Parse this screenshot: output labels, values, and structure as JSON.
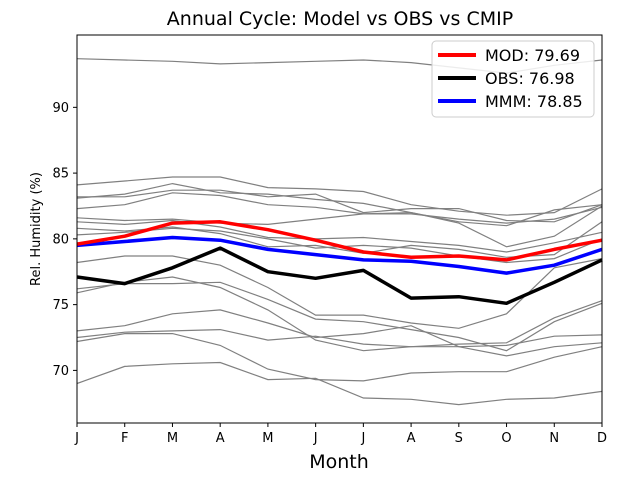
{
  "chart_data": {
    "type": "line",
    "title": "Annual Cycle: Model vs OBS vs CMIP",
    "xlabel": "Month",
    "ylabel": "Rel. Humidity (%)",
    "categories": [
      "J",
      "F",
      "M",
      "A",
      "M",
      "J",
      "J",
      "A",
      "S",
      "O",
      "N",
      "D"
    ],
    "ylim": [
      66.0,
      95.5
    ],
    "yticks": [
      70,
      75,
      80,
      85,
      90
    ],
    "grid": false,
    "legend_position": "top-right",
    "series": [
      {
        "name": "MOD: 79.69",
        "color": "#ff0000",
        "values": [
          79.6,
          80.2,
          81.2,
          81.3,
          80.7,
          79.9,
          79.0,
          78.6,
          78.7,
          78.4,
          79.2,
          79.9
        ]
      },
      {
        "name": "OBS: 76.98",
        "color": "#000000",
        "values": [
          77.1,
          76.6,
          77.8,
          79.3,
          77.5,
          77.0,
          77.6,
          75.5,
          75.6,
          75.1,
          76.7,
          78.4
        ]
      },
      {
        "name": "MMM: 78.85",
        "color": "#0000ff",
        "values": [
          79.5,
          79.8,
          80.1,
          79.9,
          79.2,
          78.8,
          78.4,
          78.3,
          77.9,
          77.4,
          78.0,
          79.2
        ]
      }
    ],
    "cmip_color": "#808080",
    "cmip_series": [
      [
        93.7,
        93.6,
        93.5,
        93.3,
        93.4,
        93.5,
        93.6,
        93.4,
        93.0,
        92.6,
        93.2,
        93.6
      ],
      [
        84.1,
        84.4,
        84.7,
        84.7,
        83.9,
        83.8,
        83.6,
        82.6,
        82.1,
        81.8,
        82.0,
        83.8
      ],
      [
        83.1,
        83.4,
        84.2,
        83.5,
        83.4,
        83.0,
        82.7,
        82.0,
        81.3,
        81.0,
        82.2,
        82.6
      ],
      [
        83.2,
        83.2,
        83.7,
        83.7,
        83.2,
        83.4,
        82.0,
        82.3,
        82.3,
        81.4,
        81.3,
        82.6
      ],
      [
        82.3,
        82.6,
        83.5,
        83.3,
        82.6,
        82.4,
        81.9,
        81.9,
        81.5,
        81.2,
        81.5,
        82.4
      ],
      [
        81.6,
        81.4,
        81.5,
        81.2,
        81.1,
        81.5,
        81.9,
        82.0,
        81.2,
        79.4,
        80.2,
        82.5
      ],
      [
        81.3,
        81.1,
        81.4,
        80.9,
        80.1,
        80.0,
        80.1,
        79.8,
        79.5,
        79.0,
        79.7,
        80.5
      ],
      [
        80.8,
        80.6,
        80.9,
        80.4,
        79.4,
        79.5,
        78.9,
        79.5,
        79.2,
        78.6,
        78.8,
        81.3
      ],
      [
        80.3,
        80.5,
        80.8,
        80.6,
        80.0,
        79.3,
        79.5,
        79.3,
        78.7,
        78.2,
        78.5,
        80.0
      ],
      [
        78.2,
        78.7,
        78.7,
        78.0,
        76.3,
        74.2,
        74.2,
        73.6,
        73.2,
        74.3,
        77.8,
        78.5
      ],
      [
        76.2,
        76.6,
        76.6,
        76.7,
        75.4,
        73.9,
        73.7,
        73.1,
        72.5,
        71.5,
        73.7,
        75.1
      ],
      [
        75.9,
        76.7,
        77.1,
        76.3,
        74.6,
        72.3,
        71.5,
        71.8,
        72.0,
        72.1,
        74.0,
        75.3
      ],
      [
        73.0,
        73.4,
        74.3,
        74.6,
        73.6,
        72.5,
        72.8,
        73.4,
        71.8,
        71.1,
        71.8,
        72.1
      ],
      [
        72.5,
        72.9,
        73.0,
        73.1,
        72.3,
        72.6,
        72.0,
        71.8,
        71.8,
        71.9,
        72.6,
        72.7
      ],
      [
        72.2,
        72.8,
        72.8,
        71.9,
        70.1,
        69.3,
        69.2,
        69.8,
        69.9,
        69.9,
        71.0,
        71.8
      ],
      [
        69.0,
        70.3,
        70.5,
        70.6,
        69.3,
        69.4,
        67.9,
        67.8,
        67.4,
        67.8,
        67.9,
        68.4
      ]
    ]
  }
}
